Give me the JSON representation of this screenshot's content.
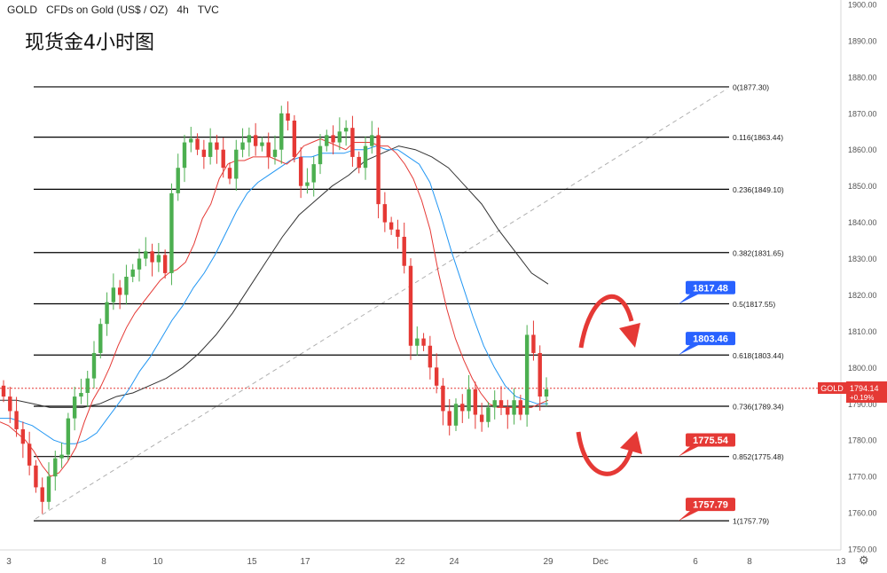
{
  "header": {
    "symbol": "GOLD",
    "description": "CFDs on Gold (US$ / OZ)",
    "interval": "4h",
    "source": "TVC"
  },
  "overlay_title": "现货金4小时图",
  "price_tag": {
    "label": "GOLD",
    "price": "1794.14",
    "change": "+0.19%"
  },
  "icons": {
    "settings": "gear-icon"
  },
  "colors": {
    "up": "#4caf50",
    "down": "#e53935",
    "ema_fast": "#e53935",
    "ema_mid": "#2196f3",
    "ma_slow": "#333333",
    "fib": "#000000",
    "arrow": "#e53935",
    "callout_blue": "#2962ff",
    "callout_red": "#e53935"
  },
  "chart_data": {
    "type": "candlestick",
    "y_axis": {
      "min": 1750,
      "max": 1900,
      "ticks": [
        "1900.00",
        "1890.00",
        "1880.00",
        "1870.00",
        "1860.00",
        "1850.00",
        "1840.00",
        "1830.00",
        "1820.00",
        "1810.00",
        "1800.00",
        "1790.00",
        "1780.00",
        "1770.00",
        "1760.00",
        "1750.00"
      ]
    },
    "x_axis": {
      "ticks": [
        "3",
        "8",
        "10",
        "15",
        "17",
        "22",
        "24",
        "29",
        "Dec",
        "6",
        "8",
        "13"
      ]
    },
    "fib_levels": [
      {
        "label": "0(1877.30)",
        "value": 1877.3
      },
      {
        "label": "0.116(1863.44)",
        "value": 1863.44
      },
      {
        "label": "0.236(1849.10)",
        "value": 1849.1
      },
      {
        "label": "0.382(1831.65)",
        "value": 1831.65
      },
      {
        "label": "0.5(1817.55)",
        "value": 1817.55
      },
      {
        "label": "0.618(1803.44)",
        "value": 1803.44
      },
      {
        "label": "0.736(1789.34)",
        "value": 1789.34
      },
      {
        "label": "0.852(1775.48)",
        "value": 1775.48
      },
      {
        "label": "1(1757.79)",
        "value": 1757.79
      }
    ],
    "callouts": [
      {
        "text": "1817.48",
        "value": 1817.48,
        "color": "blue"
      },
      {
        "text": "1803.46",
        "value": 1803.46,
        "color": "blue"
      },
      {
        "text": "1775.54",
        "value": 1775.54,
        "color": "red"
      },
      {
        "text": "1757.79",
        "value": 1757.79,
        "color": "red"
      }
    ],
    "close_series": [
      1792,
      1788,
      1783,
      1779,
      1773,
      1767,
      1763,
      1770,
      1775,
      1776,
      1786,
      1792,
      1793,
      1797,
      1804,
      1812,
      1818,
      1822,
      1820,
      1825,
      1827,
      1830,
      1832,
      1829,
      1831,
      1826,
      1848,
      1855,
      1862,
      1863,
      1860,
      1858,
      1862,
      1860,
      1855,
      1852,
      1860,
      1862,
      1864,
      1861,
      1862,
      1858,
      1860,
      1870,
      1868,
      1858,
      1850,
      1851,
      1856,
      1861,
      1864,
      1862,
      1865,
      1866,
      1858,
      1855,
      1861,
      1864,
      1845,
      1840,
      1838,
      1836,
      1828,
      1806,
      1808,
      1806,
      1800,
      1795,
      1788,
      1784,
      1790,
      1788,
      1794,
      1787,
      1785,
      1789,
      1791,
      1789,
      1787,
      1791,
      1787,
      1809,
      1804,
      1792,
      1794
    ],
    "ema_fast": [
      1785,
      1784,
      1782,
      1780,
      1777,
      1773,
      1770,
      1771,
      1774,
      1778,
      1785,
      1791,
      1795,
      1800,
      1806,
      1811,
      1815,
      1818,
      1821,
      1824,
      1826,
      1827,
      1829,
      1834,
      1841,
      1845,
      1852,
      1856,
      1857,
      1857,
      1858,
      1858,
      1858,
      1857,
      1856,
      1858,
      1861,
      1862,
      1863,
      1862,
      1861,
      1860,
      1862,
      1862,
      1862,
      1861,
      1861,
      1859,
      1856,
      1852,
      1846,
      1838,
      1826,
      1816,
      1808,
      1802,
      1797,
      1793,
      1790,
      1789,
      1789,
      1789,
      1789,
      1789,
      1790,
      1791
    ],
    "ema_mid": [
      1786,
      1786,
      1785,
      1784,
      1782,
      1780,
      1779,
      1779,
      1780,
      1782,
      1786,
      1790,
      1794,
      1799,
      1803,
      1808,
      1813,
      1817,
      1822,
      1826,
      1831,
      1837,
      1843,
      1848,
      1851,
      1853,
      1855,
      1857,
      1858,
      1858,
      1859,
      1859,
      1859,
      1860,
      1860,
      1861,
      1860,
      1860,
      1858,
      1856,
      1851,
      1842,
      1832,
      1823,
      1814,
      1806,
      1800,
      1795,
      1792,
      1791,
      1790,
      1790
    ],
    "ma_slow": [
      1791,
      1791,
      1790,
      1789,
      1789,
      1789,
      1790,
      1792,
      1793,
      1795,
      1797,
      1800,
      1804,
      1809,
      1815,
      1822,
      1829,
      1836,
      1842,
      1846,
      1850,
      1853,
      1857,
      1859,
      1861,
      1860,
      1858,
      1855,
      1850,
      1845,
      1838,
      1832,
      1826,
      1823
    ]
  }
}
